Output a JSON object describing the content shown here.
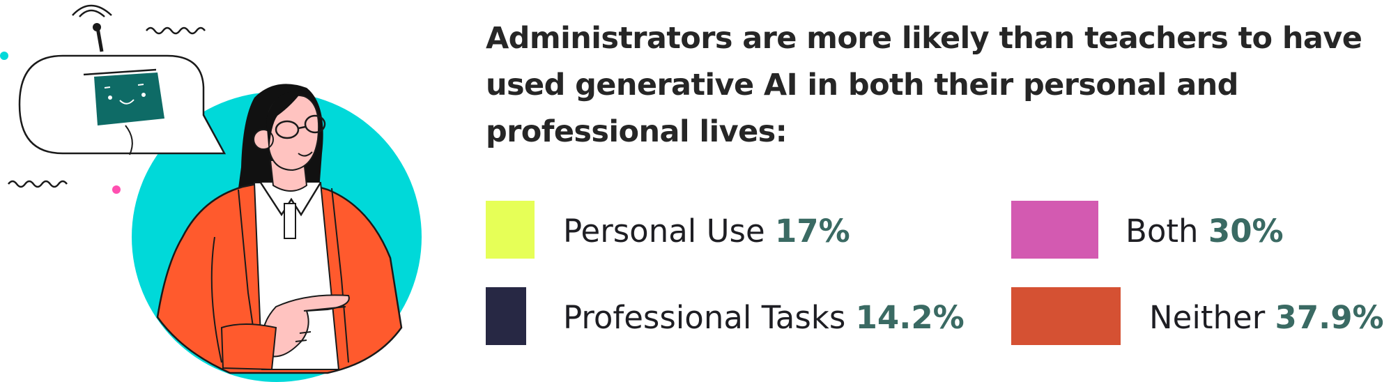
{
  "chart_data": {
    "type": "pie",
    "title": "Administrators are more likely than teachers to have used generative AI in both their personal and professional lives:",
    "legend_placement": "right",
    "categories": [
      "Personal Use",
      "Professional Tasks",
      "Both",
      "Neither"
    ],
    "values": [
      17,
      14.2,
      30,
      37.9
    ],
    "value_labels": [
      "17%",
      "14.2%",
      "30%",
      "37.9%"
    ],
    "colors": [
      "#e6ff57",
      "#272844",
      "#d35ab1",
      "#d55133"
    ]
  },
  "illustration": {
    "icons": [
      "robot-speech-bubble-icon",
      "woman-pointing-icon",
      "squiggle-icon",
      "dot-icon"
    ],
    "colors": {
      "circle": "#00d9d9",
      "jacket": "#ff5a2d",
      "skin": "#ffc3c0",
      "robot_screen": "#0e6b66"
    }
  }
}
